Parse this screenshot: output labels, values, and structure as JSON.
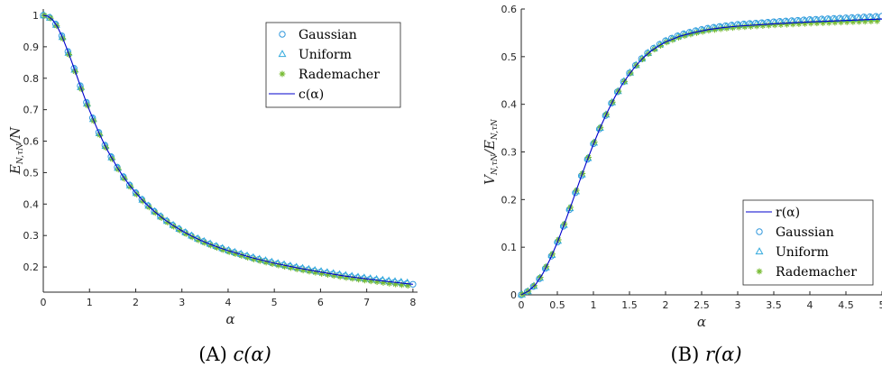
{
  "chart_data": [
    {
      "type": "line",
      "caption": {
        "label": "(A)",
        "func": "c",
        "arg": "α"
      },
      "xlabel": "α",
      "ylabel": "E_{N,τN}/N",
      "xlim": [
        0,
        8.1
      ],
      "ylim": [
        0.12,
        1.02
      ],
      "xticks": [
        0,
        1,
        2,
        3,
        4,
        5,
        6,
        7,
        8
      ],
      "yticks": [
        0.2,
        0.3,
        0.4,
        0.5,
        0.6,
        0.7,
        0.8,
        0.9,
        1
      ],
      "legend": {
        "position": "top-right",
        "entries": [
          "Gaussian",
          "Uniform",
          "Rademacher",
          "c(α)"
        ]
      },
      "series": [
        {
          "name": "c(α)",
          "kind": "line",
          "color": "#0000cc",
          "x": [
            0,
            0.1,
            0.2,
            0.3,
            0.4,
            0.5,
            0.6,
            0.7,
            0.8,
            0.9,
            1.0,
            1.1,
            1.2,
            1.3,
            1.4,
            1.5,
            1.6,
            1.7,
            1.8,
            1.9,
            2.0,
            2.2,
            2.4,
            2.6,
            2.8,
            3.0,
            3.2,
            3.4,
            3.6,
            3.8,
            4.0,
            4.5,
            5.0,
            5.5,
            6.0,
            6.5,
            7.0,
            7.5,
            8.0
          ],
          "y": [
            1.0,
            0.997,
            0.986,
            0.965,
            0.935,
            0.898,
            0.859,
            0.818,
            0.776,
            0.736,
            0.698,
            0.662,
            0.628,
            0.597,
            0.568,
            0.542,
            0.517,
            0.494,
            0.473,
            0.454,
            0.436,
            0.404,
            0.377,
            0.353,
            0.333,
            0.315,
            0.299,
            0.285,
            0.273,
            0.262,
            0.252,
            0.23,
            0.212,
            0.197,
            0.184,
            0.172,
            0.162,
            0.153,
            0.145
          ]
        },
        {
          "name": "Gaussian",
          "kind": "marker",
          "marker": "circle",
          "color": "#3399dd",
          "offset": 0.0
        },
        {
          "name": "Uniform",
          "kind": "marker",
          "marker": "triangle",
          "color": "#33aadd",
          "offset": 0.003
        },
        {
          "name": "Rademacher",
          "kind": "marker",
          "marker": "asterisk",
          "color": "#77bb33",
          "offset": -0.006
        }
      ]
    },
    {
      "type": "line",
      "caption": {
        "label": "(B)",
        "func": "r",
        "arg": "α"
      },
      "xlabel": "α",
      "ylabel": "V_{N,τN}/E_{N,τN}",
      "xlim": [
        0,
        5
      ],
      "ylim": [
        0,
        0.6
      ],
      "xticks": [
        0,
        0.5,
        1,
        1.5,
        2,
        2.5,
        3,
        3.5,
        4,
        4.5,
        5
      ],
      "yticks": [
        0,
        0.1,
        0.2,
        0.3,
        0.4,
        0.5,
        0.6
      ],
      "legend": {
        "position": "bottom-right",
        "entries": [
          "r(α)",
          "Gaussian",
          "Uniform",
          "Rademacher"
        ]
      },
      "series": [
        {
          "name": "r(α)",
          "kind": "line",
          "color": "#0000cc",
          "x": [
            0,
            0.1,
            0.2,
            0.3,
            0.4,
            0.5,
            0.6,
            0.7,
            0.8,
            0.9,
            1.0,
            1.1,
            1.2,
            1.3,
            1.4,
            1.5,
            1.6,
            1.7,
            1.8,
            1.9,
            2.0,
            2.2,
            2.4,
            2.6,
            2.8,
            3.0,
            3.5,
            4.0,
            4.5,
            5.0
          ],
          "y": [
            0.0,
            0.008,
            0.022,
            0.045,
            0.075,
            0.11,
            0.15,
            0.192,
            0.235,
            0.277,
            0.316,
            0.353,
            0.386,
            0.416,
            0.442,
            0.464,
            0.483,
            0.499,
            0.512,
            0.522,
            0.531,
            0.543,
            0.551,
            0.557,
            0.561,
            0.564,
            0.569,
            0.573,
            0.576,
            0.579
          ]
        },
        {
          "name": "Gaussian",
          "kind": "marker",
          "marker": "circle",
          "color": "#3399dd",
          "offset": 0.006
        },
        {
          "name": "Uniform",
          "kind": "marker",
          "marker": "triangle",
          "color": "#33aadd",
          "offset": 0.003
        },
        {
          "name": "Rademacher",
          "kind": "marker",
          "marker": "asterisk",
          "color": "#77bb33",
          "offset": -0.004
        }
      ]
    }
  ]
}
